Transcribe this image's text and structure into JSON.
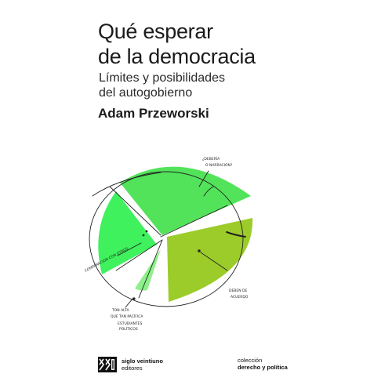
{
  "cover": {
    "title_lines": [
      "Qué esperar",
      "de la democracia"
    ],
    "subtitle_lines": [
      "Límites y posibilidades",
      "del autogobierno"
    ],
    "author": "Adam Przeworski"
  },
  "illustration": {
    "colors": {
      "slice_top": "#52e35a",
      "slice_left": "#3ff15c",
      "slice_small": "#8df08a",
      "slice_right": "#9ccc2a",
      "ink": "#222222"
    },
    "annotations": {
      "top_a": "¿DEBERÍA",
      "top_b": "O NARRACIÓN?",
      "left": "COMPARACIÓN CON OTROS",
      "bottom_a": "TON ALTA",
      "bottom_b": "QUE TAN PACÍFICA",
      "bottom_c": "ESTUDIANTES",
      "bottom_d": "POLÍTICOS",
      "right_a": "DEBEN DE",
      "right_b": "ACUERDO"
    }
  },
  "publisher": {
    "logo": "siglo-xxi-logo",
    "name": "siglo veintiuno",
    "imprint": "editores"
  },
  "collection": {
    "label": "colección",
    "name": "derecho y política"
  }
}
